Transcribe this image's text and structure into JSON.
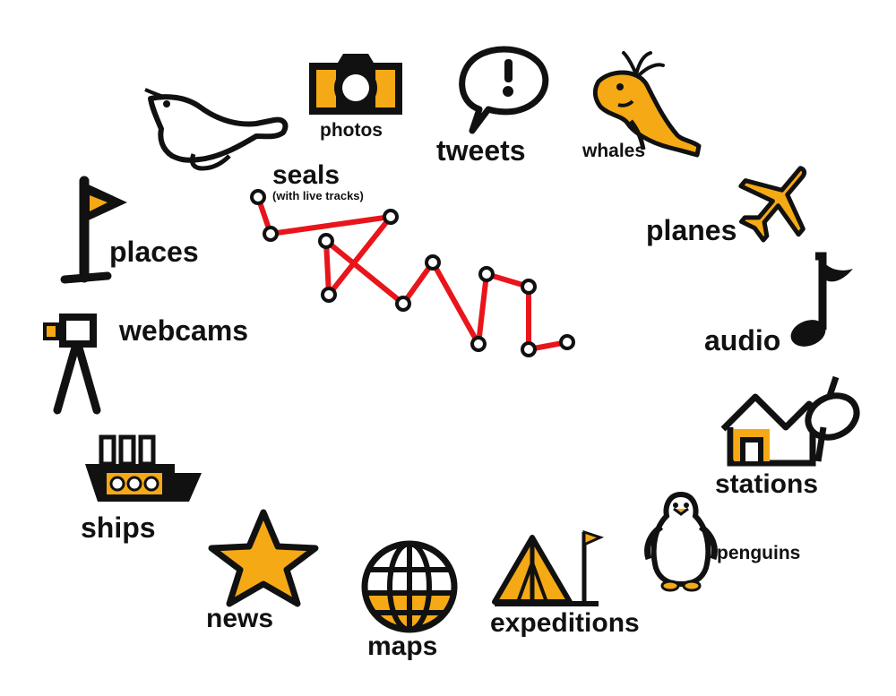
{
  "colors": {
    "accent": "#F5A915",
    "ink": "#111111",
    "track": "#E8151B"
  },
  "items": [
    {
      "key": "photos",
      "label": "photos",
      "icon": "camera-icon"
    },
    {
      "key": "tweets",
      "label": "tweets",
      "icon": "speech-bubble-icon"
    },
    {
      "key": "whales",
      "label": "whales",
      "icon": "whale-icon"
    },
    {
      "key": "planes",
      "label": "planes",
      "icon": "plane-icon"
    },
    {
      "key": "audio",
      "label": "audio",
      "icon": "music-note-icon"
    },
    {
      "key": "stations",
      "label": "stations",
      "icon": "station-icon"
    },
    {
      "key": "penguins",
      "label": "penguins",
      "icon": "penguin-icon"
    },
    {
      "key": "expeditions",
      "label": "expeditions",
      "icon": "tent-icon"
    },
    {
      "key": "maps",
      "label": "maps",
      "icon": "globe-icon"
    },
    {
      "key": "news",
      "label": "news",
      "icon": "star-icon"
    },
    {
      "key": "ships",
      "label": "ships",
      "icon": "ship-icon"
    },
    {
      "key": "webcams",
      "label": "webcams",
      "icon": "webcam-icon"
    },
    {
      "key": "places",
      "label": "places",
      "icon": "flag-icon"
    },
    {
      "key": "seals",
      "label": "seals",
      "sublabel": "(with live tracks)",
      "icon": "seal-icon"
    }
  ]
}
